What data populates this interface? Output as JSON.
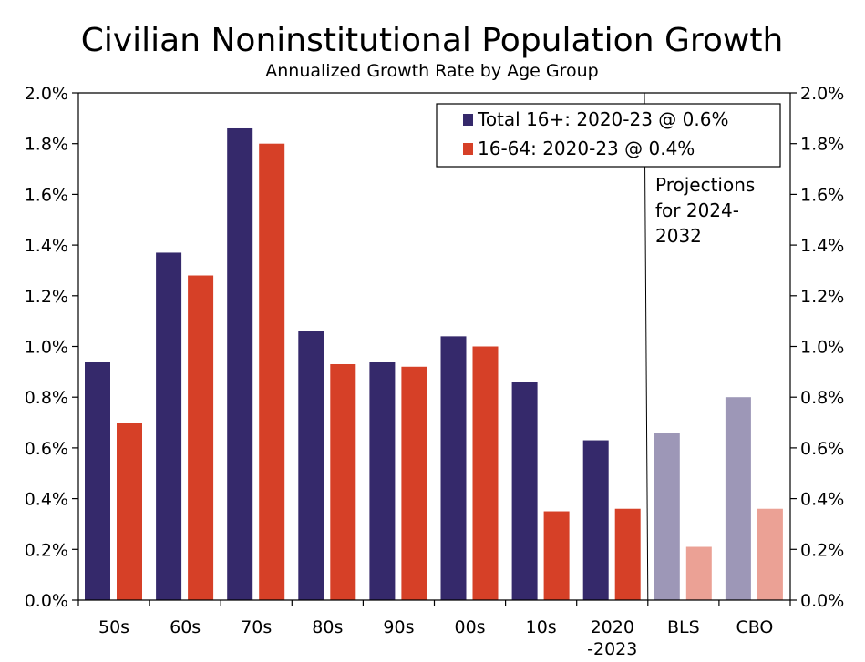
{
  "chart_data": {
    "type": "bar",
    "title": "Civilian Noninstitutional Population Growth",
    "subtitle": "Annualized Growth Rate by Age Group",
    "categories": [
      "50s",
      "60s",
      "70s",
      "80s",
      "90s",
      "00s",
      "10s",
      "2020\n-2023",
      "BLS",
      "CBO"
    ],
    "series": [
      {
        "name": "Total 16+: 2020-23 @ 0.6%",
        "color": "#35296b",
        "projection_color": "#9d97b7",
        "values": [
          0.94,
          1.37,
          1.86,
          1.06,
          0.94,
          1.04,
          0.86,
          0.63,
          0.66,
          0.8
        ]
      },
      {
        "name": "16-64: 2020-23 @ 0.4%",
        "color": "#d64027",
        "projection_color": "#eba195",
        "values": [
          0.7,
          1.28,
          1.8,
          0.93,
          0.92,
          1.0,
          0.35,
          0.36,
          0.21,
          0.36
        ]
      }
    ],
    "projection_start_index": 8,
    "ylim": [
      0,
      2.0
    ],
    "yticks": [
      "0.0%",
      "0.2%",
      "0.4%",
      "0.6%",
      "0.8%",
      "1.0%",
      "1.2%",
      "1.4%",
      "1.6%",
      "1.8%",
      "2.0%"
    ],
    "ytick_values": [
      0,
      0.2,
      0.4,
      0.6,
      0.8,
      1.0,
      1.2,
      1.4,
      1.6,
      1.8,
      2.0
    ],
    "annotation": "Projections\nfor 2024-\n2032",
    "legend_position": "top-right",
    "grid": false
  }
}
